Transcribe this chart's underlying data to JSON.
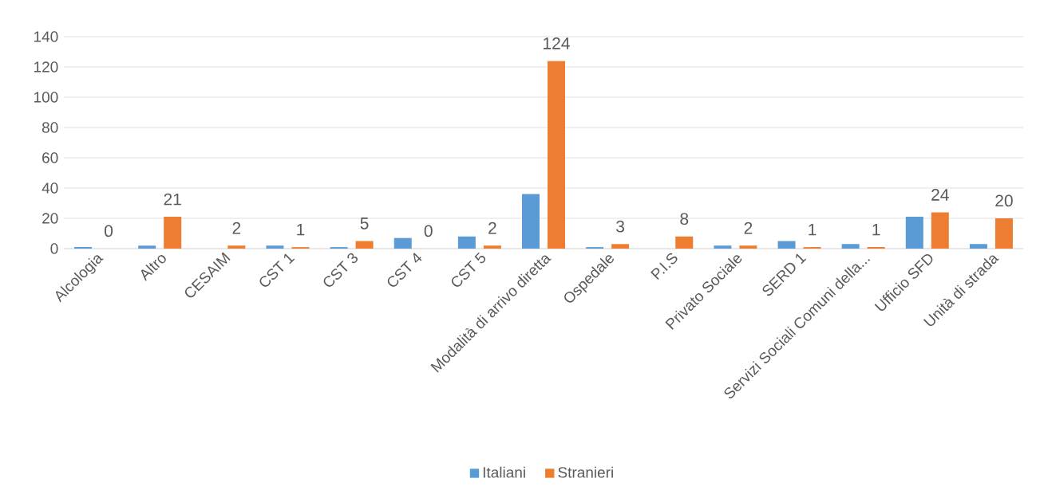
{
  "chart_data": {
    "type": "bar",
    "categories": [
      "Alcologia",
      "Altro",
      "CESAIM",
      "CST 1",
      "CST 3",
      "CST 4",
      "CST 5",
      "Modalità  di arrivo diretta",
      "Ospedale",
      "P.I.S",
      "Privato Sociale",
      "SERD 1",
      "Servizi Sociali Comuni della...",
      "Ufficio SFD",
      "Unità di strada"
    ],
    "series": [
      {
        "name": "Italiani",
        "color": "#5b9bd5",
        "values": [
          1,
          2,
          0,
          2,
          1,
          7,
          8,
          36,
          1,
          0,
          2,
          5,
          3,
          21,
          3
        ]
      },
      {
        "name": "Stranieri",
        "color": "#ed7d31",
        "values": [
          0,
          21,
          2,
          1,
          5,
          0,
          2,
          124,
          3,
          8,
          2,
          1,
          1,
          24,
          20
        ],
        "value_labels": [
          "0",
          "21",
          "2",
          "1",
          "5",
          "0",
          "2",
          "124",
          "3",
          "8",
          "2",
          "1",
          "1",
          "24",
          "20"
        ]
      }
    ],
    "ylim": [
      0,
      140
    ],
    "yticks": [
      0,
      20,
      40,
      60,
      80,
      100,
      120,
      140
    ],
    "grid": "y",
    "legend": "bottom"
  }
}
